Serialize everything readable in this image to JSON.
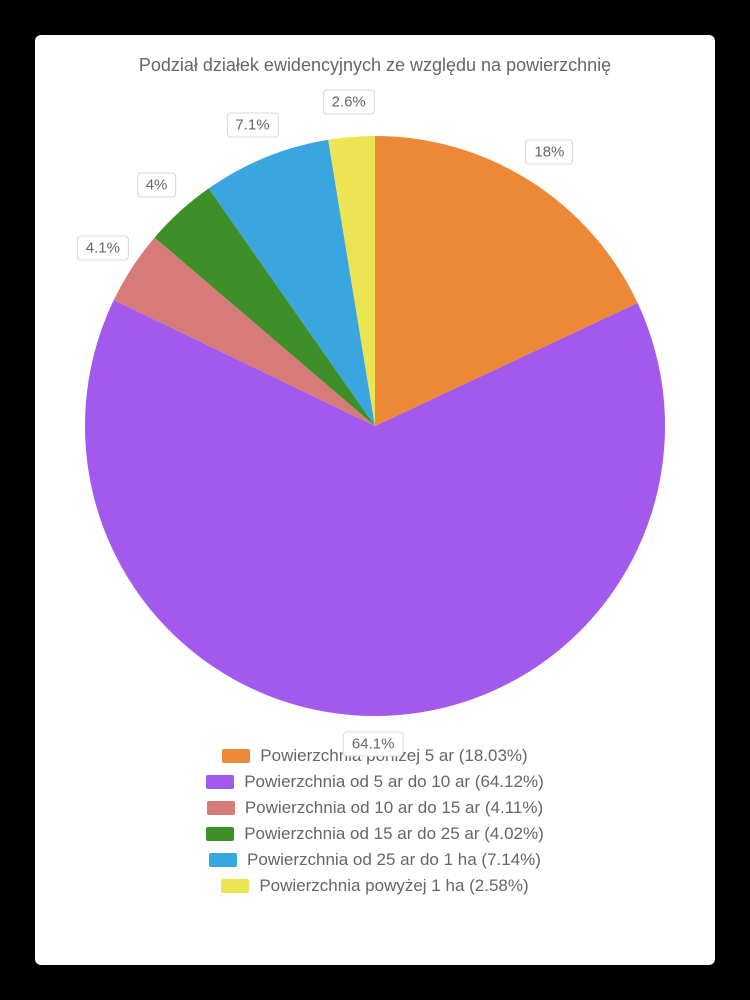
{
  "chart": {
    "type": "pie",
    "title": "Podział działek ewidencyjnych ze względu na powierzchnię",
    "title_fontsize": 18,
    "title_color": "#666666",
    "background_color": "#ffffff",
    "page_background": "#000000",
    "radius": 290,
    "start_angle_deg": -90,
    "label_fontsize": 15,
    "label_text_color": "#666666",
    "label_bg": "#ffffff",
    "label_border": "#d8d8d8",
    "legend_fontsize": 17,
    "legend_text_color": "#666666",
    "slices": [
      {
        "label": "Powierzchnia poniżej 5 ar",
        "value": 18.03,
        "display_pct": "18%",
        "display_outside": true,
        "color": "#ed8936"
      },
      {
        "label": "Powierzchnia od 5 ar do 10 ar",
        "value": 64.12,
        "display_pct": "64.1%",
        "display_outside": false,
        "color": "#a259ec"
      },
      {
        "label": "Powierzchnia od 10 ar do 15 ar",
        "value": 4.11,
        "display_pct": "4.1%",
        "display_outside": true,
        "color": "#d77a7a"
      },
      {
        "label": "Powierzchnia od 15 ar do 25 ar",
        "value": 4.02,
        "display_pct": "4%",
        "display_outside": true,
        "color": "#3f8f29"
      },
      {
        "label": "Powierzchnia od 25 ar do 1 ha",
        "value": 7.14,
        "display_pct": "7.1%",
        "display_outside": true,
        "color": "#3aa6e0"
      },
      {
        "label": "Powierzchnia powyżej 1 ha",
        "value": 2.58,
        "display_pct": "2.6%",
        "display_outside": true,
        "color": "#ece452"
      }
    ]
  }
}
